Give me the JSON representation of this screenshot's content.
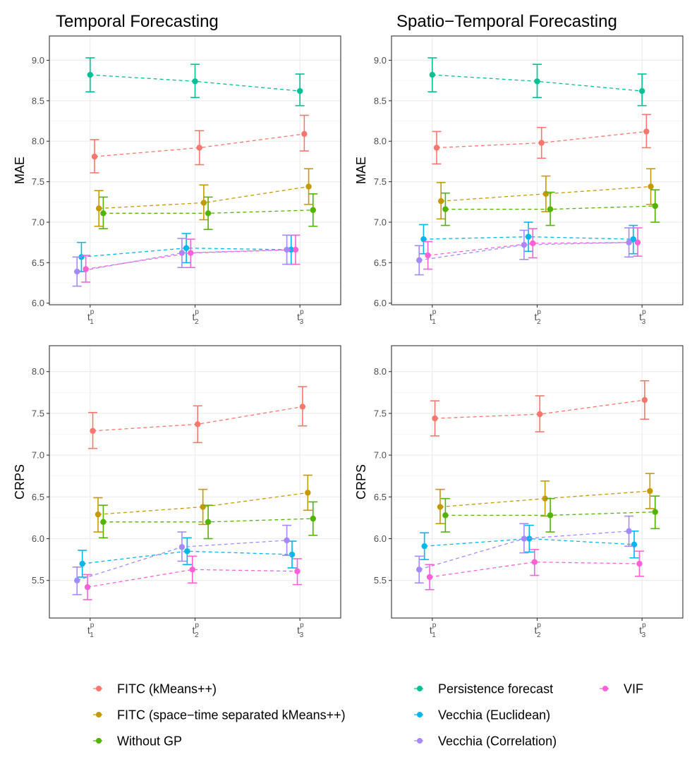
{
  "legend": [
    {
      "key": "fitc",
      "label": "FITC (kMeans++)",
      "color": "#F8766D"
    },
    {
      "key": "fitcst",
      "label": "FITC (space−time separated kMeans++)",
      "color": "#C49A00"
    },
    {
      "key": "nogp",
      "label": "Without GP",
      "color": "#53B400"
    },
    {
      "key": "persist",
      "label": "Persistence forecast",
      "color": "#00C094"
    },
    {
      "key": "veuc",
      "label": "Vecchia (Euclidean)",
      "color": "#00B6EB"
    },
    {
      "key": "vcor",
      "label": "Vecchia (Correlation)",
      "color": "#A58AFF"
    },
    {
      "key": "vif",
      "label": "VIF",
      "color": "#FB61D7"
    }
  ],
  "chart_data": [
    {
      "type": "line",
      "title": "Temporal Forecasting",
      "ylabel": "MAE",
      "categories": [
        "t1p",
        "t2p",
        "t3p"
      ],
      "tick_base": "t",
      "tick_sup": "p",
      "tick_subs": [
        "1",
        "2",
        "3"
      ],
      "ylim": [
        5.98,
        9.3
      ],
      "yticks": [
        6.0,
        6.5,
        7.0,
        7.5,
        8.0,
        8.5,
        9.0
      ],
      "ytick_labels": [
        "6.0",
        "6.5",
        "7.0",
        "7.5",
        "8.0",
        "8.5",
        "9.0"
      ],
      "series": [
        {
          "key": "fitc",
          "values": [
            7.81,
            7.92,
            8.09
          ],
          "lower": [
            7.61,
            7.71,
            7.88
          ],
          "upper": [
            8.02,
            8.13,
            8.32
          ]
        },
        {
          "key": "fitcst",
          "values": [
            7.17,
            7.24,
            7.44
          ],
          "lower": [
            6.95,
            7.03,
            7.22
          ],
          "upper": [
            7.39,
            7.46,
            7.66
          ]
        },
        {
          "key": "nogp",
          "values": [
            7.11,
            7.11,
            7.15
          ],
          "lower": [
            6.92,
            6.91,
            6.95
          ],
          "upper": [
            7.31,
            7.31,
            7.35
          ]
        },
        {
          "key": "persist",
          "values": [
            8.82,
            8.74,
            8.62
          ],
          "lower": [
            8.61,
            8.54,
            8.44
          ],
          "upper": [
            9.03,
            8.95,
            8.83
          ]
        },
        {
          "key": "veuc",
          "values": [
            6.57,
            6.68,
            6.66
          ],
          "lower": [
            6.39,
            6.5,
            6.48
          ],
          "upper": [
            6.75,
            6.86,
            6.84
          ]
        },
        {
          "key": "vcor",
          "values": [
            6.39,
            6.62,
            6.66
          ],
          "lower": [
            6.21,
            6.44,
            6.48
          ],
          "upper": [
            6.57,
            6.8,
            6.84
          ]
        },
        {
          "key": "vif",
          "values": [
            6.42,
            6.62,
            6.66
          ],
          "lower": [
            6.26,
            6.44,
            6.48
          ],
          "upper": [
            6.59,
            6.79,
            6.84
          ]
        }
      ]
    },
    {
      "type": "line",
      "title": "Spatio−Temporal Forecasting",
      "ylabel": "MAE",
      "categories": [
        "t1p",
        "t2p",
        "t3p"
      ],
      "tick_base": "t",
      "tick_sup": "p",
      "tick_subs": [
        "1",
        "2",
        "3"
      ],
      "ylim": [
        5.98,
        9.3
      ],
      "yticks": [
        6.0,
        6.5,
        7.0,
        7.5,
        8.0,
        8.5,
        9.0
      ],
      "ytick_labels": [
        "6.0",
        "6.5",
        "7.0",
        "7.5",
        "8.0",
        "8.5",
        "9.0"
      ],
      "series": [
        {
          "key": "fitc",
          "values": [
            7.92,
            7.98,
            8.12
          ],
          "lower": [
            7.72,
            7.79,
            7.92
          ],
          "upper": [
            8.12,
            8.17,
            8.33
          ]
        },
        {
          "key": "fitcst",
          "values": [
            7.26,
            7.35,
            7.44
          ],
          "lower": [
            7.04,
            7.13,
            7.22
          ],
          "upper": [
            7.49,
            7.57,
            7.66
          ]
        },
        {
          "key": "nogp",
          "values": [
            7.16,
            7.16,
            7.2
          ],
          "lower": [
            6.96,
            6.96,
            7.0
          ],
          "upper": [
            7.36,
            7.37,
            7.4
          ]
        },
        {
          "key": "persist",
          "values": [
            8.82,
            8.74,
            8.62
          ],
          "lower": [
            8.61,
            8.54,
            8.44
          ],
          "upper": [
            9.03,
            8.95,
            8.83
          ]
        },
        {
          "key": "veuc",
          "values": [
            6.79,
            6.82,
            6.79
          ],
          "lower": [
            6.61,
            6.64,
            6.61
          ],
          "upper": [
            6.97,
            7.0,
            6.96
          ]
        },
        {
          "key": "vcor",
          "values": [
            6.53,
            6.72,
            6.75
          ],
          "lower": [
            6.35,
            6.54,
            6.57
          ],
          "upper": [
            6.71,
            6.9,
            6.93
          ]
        },
        {
          "key": "vif",
          "values": [
            6.59,
            6.74,
            6.75
          ],
          "lower": [
            6.42,
            6.56,
            6.58
          ],
          "upper": [
            6.76,
            6.92,
            6.93
          ]
        }
      ]
    },
    {
      "type": "line",
      "title": "",
      "ylabel": "CRPS",
      "categories": [
        "t1p",
        "t2p",
        "t3p"
      ],
      "tick_base": "t",
      "tick_sup": "p",
      "tick_subs": [
        "1",
        "2",
        "3"
      ],
      "ylim": [
        5.05,
        8.31
      ],
      "yticks": [
        5.5,
        6.0,
        6.5,
        7.0,
        7.5,
        8.0
      ],
      "ytick_labels": [
        "5.5",
        "6.0",
        "6.5",
        "7.0",
        "7.5",
        "8.0"
      ],
      "series": [
        {
          "key": "fitc",
          "values": [
            7.29,
            7.37,
            7.58
          ],
          "lower": [
            7.08,
            7.15,
            7.35
          ],
          "upper": [
            7.51,
            7.59,
            7.82
          ]
        },
        {
          "key": "fitcst",
          "values": [
            6.29,
            6.38,
            6.55
          ],
          "lower": [
            6.08,
            6.17,
            6.34
          ],
          "upper": [
            6.49,
            6.59,
            6.76
          ]
        },
        {
          "key": "nogp",
          "values": [
            6.2,
            6.2,
            6.24
          ],
          "lower": [
            6.01,
            6.0,
            6.04
          ],
          "upper": [
            6.4,
            6.4,
            6.44
          ]
        },
        {
          "key": "veuc",
          "values": [
            5.7,
            5.85,
            5.81
          ],
          "lower": [
            5.54,
            5.69,
            5.65
          ],
          "upper": [
            5.86,
            6.01,
            5.97
          ]
        },
        {
          "key": "vcor",
          "values": [
            5.5,
            5.9,
            5.98
          ],
          "lower": [
            5.33,
            5.73,
            5.8
          ],
          "upper": [
            5.66,
            6.08,
            6.16
          ]
        },
        {
          "key": "vif",
          "values": [
            5.42,
            5.63,
            5.61
          ],
          "lower": [
            5.27,
            5.47,
            5.45
          ],
          "upper": [
            5.57,
            5.79,
            5.76
          ]
        }
      ]
    },
    {
      "type": "line",
      "title": "",
      "ylabel": "CRPS",
      "categories": [
        "t1p",
        "t2p",
        "t3p"
      ],
      "tick_base": "t",
      "tick_sup": "p",
      "tick_subs": [
        "1",
        "2",
        "3"
      ],
      "ylim": [
        5.05,
        8.31
      ],
      "yticks": [
        5.5,
        6.0,
        6.5,
        7.0,
        7.5,
        8.0
      ],
      "ytick_labels": [
        "5.5",
        "6.0",
        "6.5",
        "7.0",
        "7.5",
        "8.0"
      ],
      "series": [
        {
          "key": "fitc",
          "values": [
            7.44,
            7.49,
            7.66
          ],
          "lower": [
            7.23,
            7.28,
            7.43
          ],
          "upper": [
            7.65,
            7.71,
            7.89
          ]
        },
        {
          "key": "fitcst",
          "values": [
            6.38,
            6.48,
            6.57
          ],
          "lower": [
            6.18,
            6.27,
            6.36
          ],
          "upper": [
            6.59,
            6.69,
            6.78
          ]
        },
        {
          "key": "nogp",
          "values": [
            6.28,
            6.28,
            6.32
          ],
          "lower": [
            6.08,
            6.08,
            6.12
          ],
          "upper": [
            6.48,
            6.48,
            6.51
          ]
        },
        {
          "key": "veuc",
          "values": [
            5.91,
            6.0,
            5.93
          ],
          "lower": [
            5.75,
            5.84,
            5.77
          ],
          "upper": [
            6.07,
            6.16,
            6.09
          ]
        },
        {
          "key": "vcor",
          "values": [
            5.63,
            6.0,
            6.09
          ],
          "lower": [
            5.47,
            5.83,
            5.91
          ],
          "upper": [
            5.79,
            6.18,
            6.27
          ]
        },
        {
          "key": "vif",
          "values": [
            5.54,
            5.72,
            5.7
          ],
          "lower": [
            5.39,
            5.56,
            5.55
          ],
          "upper": [
            5.69,
            5.87,
            5.85
          ]
        }
      ]
    }
  ]
}
